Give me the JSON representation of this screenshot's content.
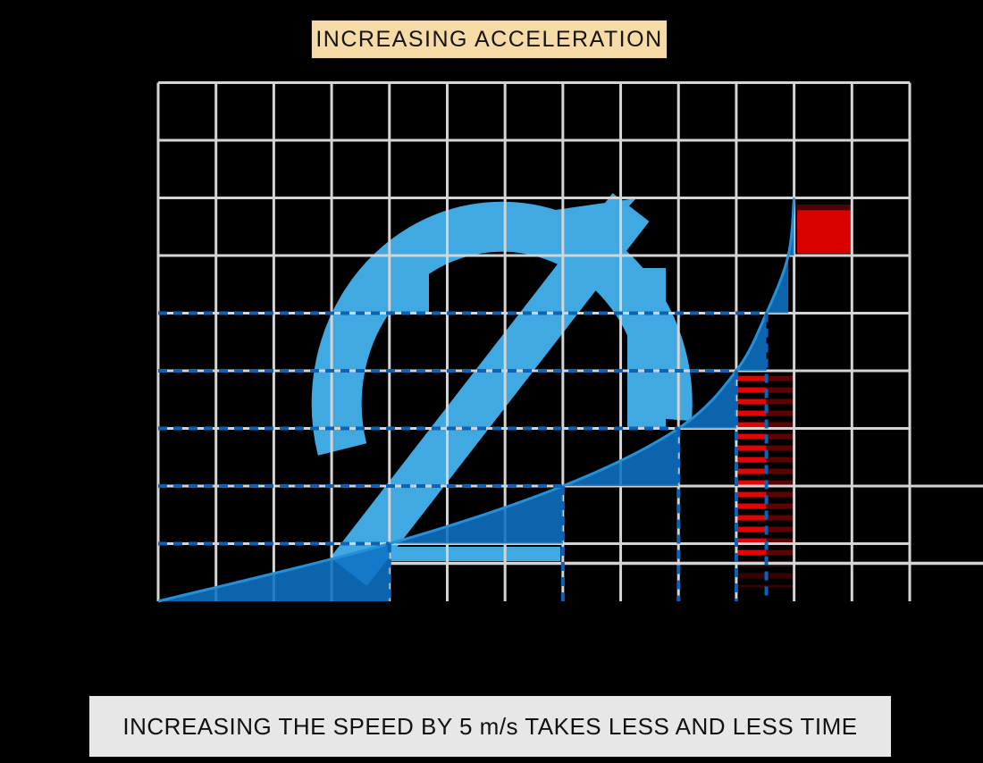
{
  "page": {
    "background": "#000000"
  },
  "title_box": {
    "label": "INCREASING ACCELERATION",
    "bg": "#F6DBA6",
    "text_color": "#141414"
  },
  "caption_box": {
    "label": "INCREASING THE SPEED BY 5 m/s TAKES LESS AND LESS TIME",
    "bg": "#E7E7E7",
    "text_color": "#111111"
  },
  "chart_data": {
    "type": "area",
    "title": "INCREASING ACCELERATION",
    "annotation": "INCREASING THE SPEED BY 5 m/s TAKES LESS AND LESS TIME",
    "xlabel": "",
    "ylabel": "",
    "x_axis": {
      "unit": "time",
      "gridline_columns": 13,
      "tick_labels_visible": false
    },
    "y_axis": {
      "unit": "speed (m/s)",
      "gridline_rows": 9,
      "m_per_s_per_row": 5,
      "range_m_per_s": [
        0,
        45
      ],
      "tick_labels_visible": false
    },
    "grid": true,
    "curve_points_t_v": [
      [
        0,
        0
      ],
      [
        4,
        5
      ],
      [
        7,
        10
      ],
      [
        9,
        15
      ],
      [
        10,
        20
      ],
      [
        10.52,
        25
      ],
      [
        10.9,
        30
      ],
      [
        11.0,
        35
      ]
    ],
    "speed_increment_levels_m_per_s": [
      5,
      10,
      15,
      20,
      25
    ],
    "fill_style": "area under curve, stepped back at each 5 m/s level crossing",
    "hatched_strip": {
      "t_from": 10.0,
      "t_mid": 10.52,
      "t_to": 11.0,
      "v_top": 19.8,
      "v_bottom_bright": 3.3,
      "v_bottom_faint": 1.2
    },
    "unit_area_square": {
      "t_from": 11.05,
      "t_to": 11.99,
      "v_from": 30.2,
      "v_to": 34.4
    }
  },
  "colors": {
    "curve_fill": "#0D72C4",
    "curve_stroke": "#2590DA",
    "dashed_guide": "#0B63B8",
    "grid": "#D4D4D4",
    "watermark": "#41A9E2",
    "hatch_bright": "#E30505",
    "hatch_dark": "#5C0303",
    "hatch_faint": "#380202",
    "square_red": "#D90000",
    "square_top_edge": "#4E0202"
  }
}
